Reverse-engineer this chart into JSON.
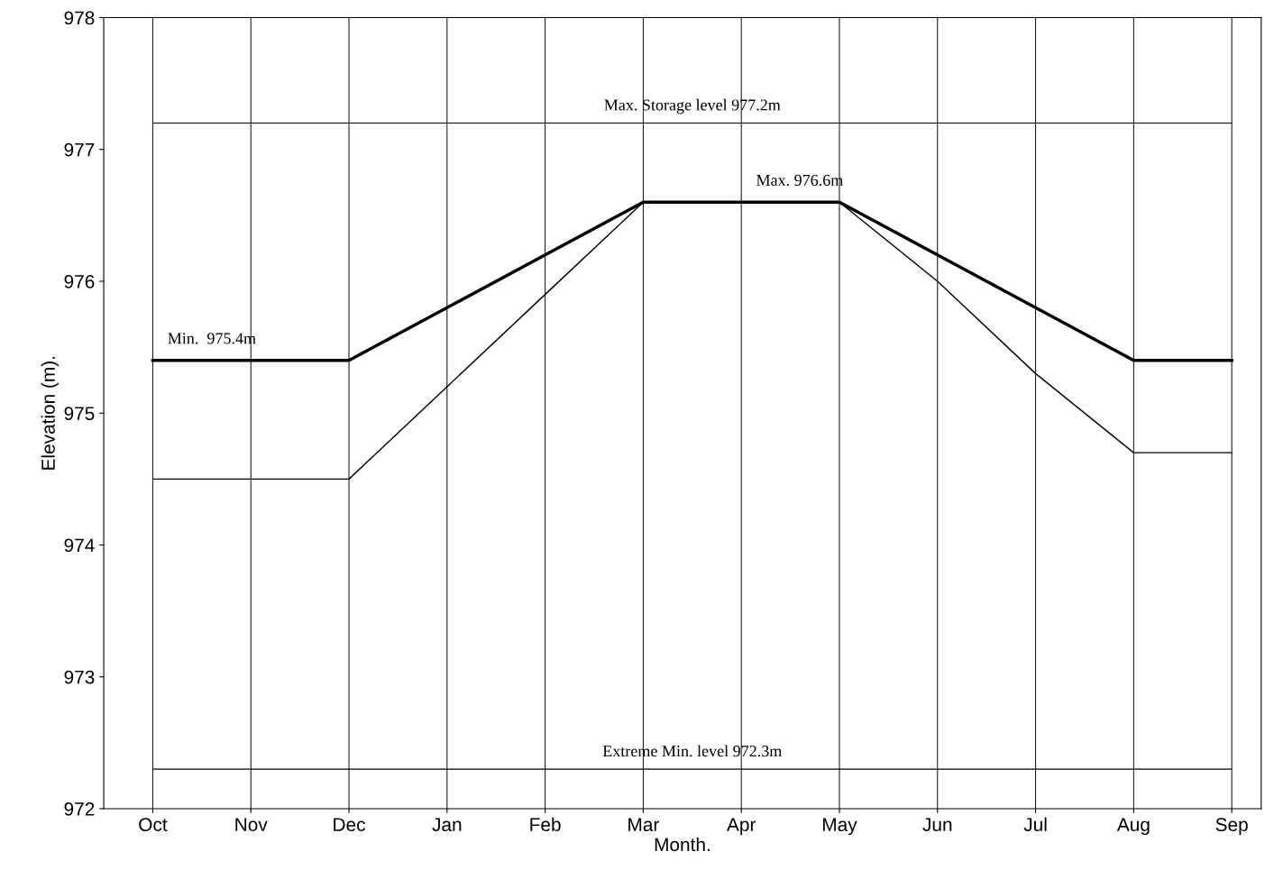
{
  "chart_data": {
    "type": "line",
    "xlabel": "Month.",
    "ylabel": "Elevation (m).",
    "categories": [
      "Oct",
      "Nov",
      "Dec",
      "Jan",
      "Feb",
      "Mar",
      "Apr",
      "May",
      "Jun",
      "Jul",
      "Aug",
      "Sep"
    ],
    "series": [
      {
        "color": "#000000",
        "values": [
          975.4,
          975.4,
          975.4,
          975.8,
          976.2,
          976.6,
          976.6,
          976.6,
          976.2,
          975.8,
          975.4,
          975.4
        ]
      },
      {
        "color": "#000000",
        "values": [
          974.5,
          974.5,
          974.5,
          975.2,
          975.9,
          976.6,
          976.6,
          976.6,
          976.0,
          975.3,
          974.7,
          974.7
        ]
      }
    ],
    "ylim": [
      972,
      978
    ],
    "yticks": [
      972,
      973,
      974,
      975,
      976,
      977,
      978
    ],
    "ref_lines": [
      {
        "axis": "y",
        "value": 977.2,
        "label": "Max. Storage level 977.2m",
        "color": "#000000"
      },
      {
        "axis": "y",
        "value": 972.3,
        "label": "Extreme Min. level 972.3m",
        "color": "#000000"
      }
    ],
    "annotations": [
      {
        "text": "Max. 976.6m",
        "x": "Apr",
        "y": 976.6
      },
      {
        "text": "Min.  975.4m",
        "x": "Oct",
        "y": 975.4
      }
    ],
    "grid": "x",
    "marker": "none",
    "line_style": "solid"
  }
}
